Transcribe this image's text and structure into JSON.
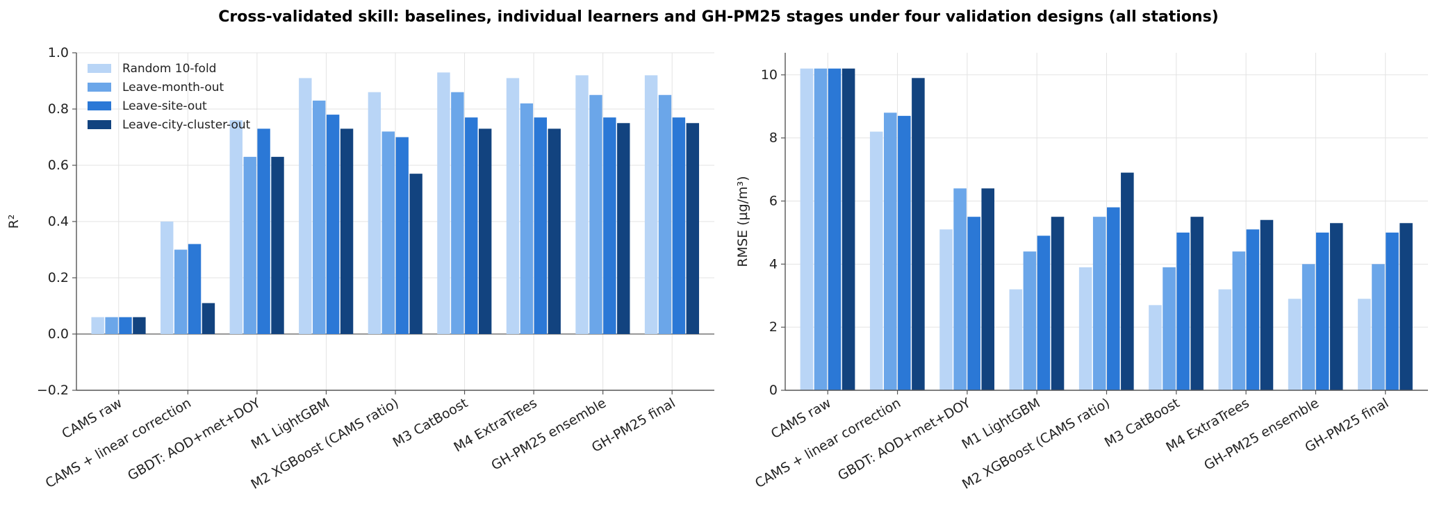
{
  "title": "Cross-validated skill: baselines, individual learners and GH-PM25 stages under four validation designs (all stations)",
  "colors": {
    "series": [
      "#b9d5f6",
      "#6ba6e9",
      "#2b78d6",
      "#12437f"
    ],
    "grid": "#e3e3e3",
    "axis": "#555555",
    "zero_line": "#777777"
  },
  "chart_data": [
    {
      "type": "bar",
      "title": "",
      "xlabel": "",
      "ylabel": "R²",
      "ylim": [
        -0.2,
        1.0
      ],
      "yticks": [
        -0.2,
        0.0,
        0.2,
        0.4,
        0.6,
        0.8,
        1.0
      ],
      "ytick_labels": [
        "−0.2",
        "0.0",
        "0.2",
        "0.4",
        "0.6",
        "0.8",
        "1.0"
      ],
      "grid": true,
      "legend_position": "top-left",
      "categories": [
        "CAMS raw",
        "CAMS + linear correction",
        "GBDT: AOD+met+DOY",
        "M1 LightGBM",
        "M2 XGBoost (CAMS ratio)",
        "M3 CatBoost",
        "M4 ExtraTrees",
        "GH-PM25 ensemble",
        "GH-PM25 final"
      ],
      "series": [
        {
          "name": "Random 10-fold",
          "values": [
            0.06,
            0.4,
            0.76,
            0.91,
            0.86,
            0.93,
            0.91,
            0.92,
            0.92
          ]
        },
        {
          "name": "Leave-month-out",
          "values": [
            0.06,
            0.3,
            0.63,
            0.83,
            0.72,
            0.86,
            0.82,
            0.85,
            0.85
          ]
        },
        {
          "name": "Leave-site-out",
          "values": [
            0.06,
            0.32,
            0.73,
            0.78,
            0.7,
            0.77,
            0.77,
            0.77,
            0.77
          ]
        },
        {
          "name": "Leave-city-cluster-out",
          "values": [
            0.06,
            0.11,
            0.63,
            0.73,
            0.57,
            0.73,
            0.73,
            0.75,
            0.75
          ]
        }
      ]
    },
    {
      "type": "bar",
      "title": "",
      "xlabel": "",
      "ylabel": "RMSE (µg/m³)",
      "ylim": [
        0,
        10.7
      ],
      "yticks": [
        0,
        2,
        4,
        6,
        8,
        10
      ],
      "ytick_labels": [
        "0",
        "2",
        "4",
        "6",
        "8",
        "10"
      ],
      "grid": true,
      "categories": [
        "CAMS raw",
        "CAMS + linear correction",
        "GBDT: AOD+met+DOY",
        "M1 LightGBM",
        "M2 XGBoost (CAMS ratio)",
        "M3 CatBoost",
        "M4 ExtraTrees",
        "GH-PM25 ensemble",
        "GH-PM25 final"
      ],
      "series": [
        {
          "name": "Random 10-fold",
          "values": [
            10.2,
            8.2,
            5.1,
            3.2,
            3.9,
            2.7,
            3.2,
            2.9,
            2.9
          ]
        },
        {
          "name": "Leave-month-out",
          "values": [
            10.2,
            8.8,
            6.4,
            4.4,
            5.5,
            3.9,
            4.4,
            4.0,
            4.0
          ]
        },
        {
          "name": "Leave-site-out",
          "values": [
            10.2,
            8.7,
            5.5,
            4.9,
            5.8,
            5.0,
            5.1,
            5.0,
            5.0
          ]
        },
        {
          "name": "Leave-city-cluster-out",
          "values": [
            10.2,
            9.9,
            6.4,
            5.5,
            6.9,
            5.5,
            5.4,
            5.3,
            5.3
          ]
        }
      ]
    }
  ]
}
